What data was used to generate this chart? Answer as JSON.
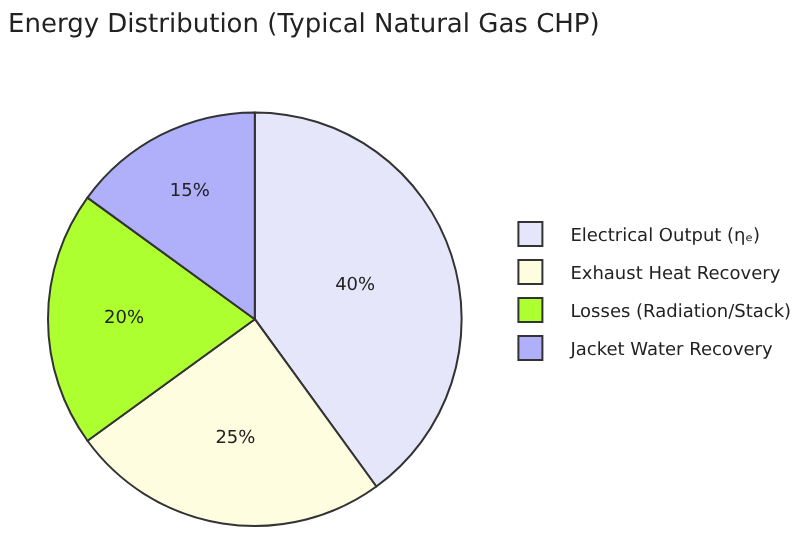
{
  "chart_data": {
    "type": "pie",
    "title": "Energy Distribution (Typical Natural Gas CHP)",
    "categories": [
      "Electrical Output (ηₑ)",
      "Exhaust Heat Recovery",
      "Losses (Radiation/Stack)",
      "Jacket Water Recovery"
    ],
    "values": [
      40,
      25,
      20,
      15
    ],
    "colors": [
      "#e6e6fa",
      "#fffde0",
      "#adff2f",
      "#b0b0fa"
    ],
    "value_labels": [
      "40%",
      "25%",
      "20%",
      "15%"
    ],
    "legend": "right"
  }
}
